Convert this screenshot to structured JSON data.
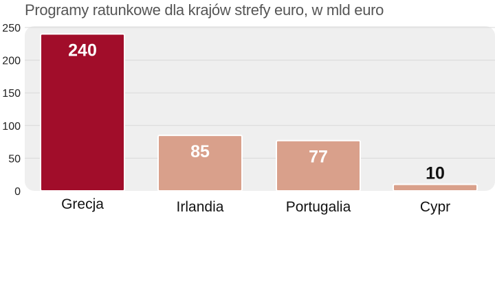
{
  "chart_data": {
    "type": "bar",
    "title": "Programy ratunkowe dla krajów strefy euro, w mld euro",
    "categories": [
      "Grecja",
      "Irlandia",
      "Portugalia",
      "Cypr"
    ],
    "values": [
      240,
      85,
      77,
      10
    ],
    "value_labels": [
      "240",
      "85",
      "77",
      "10"
    ],
    "yticks": [
      0,
      50,
      100,
      150,
      200,
      250
    ],
    "ylim": [
      0,
      250
    ],
    "xlabel": "",
    "ylabel": "",
    "grid": true,
    "colors": {
      "highlight": "#a10d2a",
      "bar": "#d9a08b",
      "plot_bg": "#efefef",
      "grid": "#d9d9d9"
    }
  }
}
